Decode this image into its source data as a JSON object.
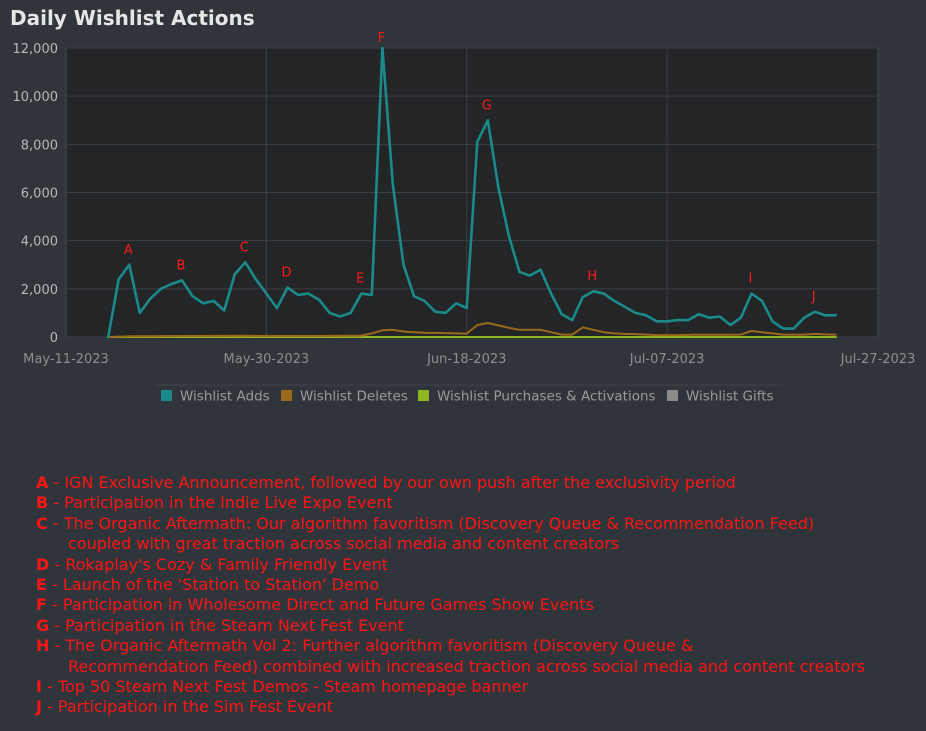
{
  "chart_data": {
    "type": "line",
    "title": "Daily Wishlist Actions",
    "xlabel": "",
    "ylabel": "",
    "x_range": [
      "2023-05-11",
      "2023-07-27"
    ],
    "ylim": [
      0,
      12000
    ],
    "y_ticks": [
      {
        "value": 0,
        "label": "0"
      },
      {
        "value": 2000,
        "label": "2,000"
      },
      {
        "value": 4000,
        "label": "4,000"
      },
      {
        "value": 6000,
        "label": "6,000"
      },
      {
        "value": 8000,
        "label": "8,000"
      },
      {
        "value": 10000,
        "label": "10,000"
      },
      {
        "value": 12000,
        "label": "12,000"
      }
    ],
    "x_ticks": [
      {
        "date": "2023-05-11",
        "label": "May-11-2023"
      },
      {
        "date": "2023-05-30",
        "label": "May-30-2023"
      },
      {
        "date": "2023-06-18",
        "label": "Jun-18-2023"
      },
      {
        "date": "2023-07-07",
        "label": "Jul-07-2023"
      },
      {
        "date": "2023-07-27",
        "label": "Jul-27-2023"
      }
    ],
    "grid": true,
    "legend_position": "bottom",
    "series": [
      {
        "name": "Wishlist Adds",
        "color": "#1b8a8a",
        "points": [
          [
            "2023-05-15",
            0
          ],
          [
            "2023-05-16",
            2400
          ],
          [
            "2023-05-17",
            3000
          ],
          [
            "2023-05-18",
            1000
          ],
          [
            "2023-05-19",
            1600
          ],
          [
            "2023-05-20",
            2000
          ],
          [
            "2023-05-21",
            2200
          ],
          [
            "2023-05-22",
            2350
          ],
          [
            "2023-05-23",
            1700
          ],
          [
            "2023-05-24",
            1400
          ],
          [
            "2023-05-25",
            1500
          ],
          [
            "2023-05-26",
            1100
          ],
          [
            "2023-05-27",
            2600
          ],
          [
            "2023-05-28",
            3100
          ],
          [
            "2023-05-29",
            2400
          ],
          [
            "2023-05-30",
            1800
          ],
          [
            "2023-05-31",
            1200
          ],
          [
            "2023-06-01",
            2050
          ],
          [
            "2023-06-02",
            1750
          ],
          [
            "2023-06-03",
            1800
          ],
          [
            "2023-06-04",
            1550
          ],
          [
            "2023-06-05",
            1000
          ],
          [
            "2023-06-06",
            850
          ],
          [
            "2023-06-07",
            1000
          ],
          [
            "2023-06-08",
            1800
          ],
          [
            "2023-06-09",
            1750
          ],
          [
            "2023-06-10",
            12000
          ],
          [
            "2023-06-11",
            6300
          ],
          [
            "2023-06-12",
            3000
          ],
          [
            "2023-06-13",
            1700
          ],
          [
            "2023-06-14",
            1500
          ],
          [
            "2023-06-15",
            1050
          ],
          [
            "2023-06-16",
            1000
          ],
          [
            "2023-06-17",
            1400
          ],
          [
            "2023-06-18",
            1200
          ],
          [
            "2023-06-19",
            8100
          ],
          [
            "2023-06-20",
            9000
          ],
          [
            "2023-06-21",
            6200
          ],
          [
            "2023-06-22",
            4200
          ],
          [
            "2023-06-23",
            2700
          ],
          [
            "2023-06-24",
            2550
          ],
          [
            "2023-06-25",
            2800
          ],
          [
            "2023-06-26",
            1800
          ],
          [
            "2023-06-27",
            950
          ],
          [
            "2023-06-28",
            700
          ],
          [
            "2023-06-29",
            1650
          ],
          [
            "2023-06-30",
            1900
          ],
          [
            "2023-07-01",
            1800
          ],
          [
            "2023-07-02",
            1500
          ],
          [
            "2023-07-03",
            1250
          ],
          [
            "2023-07-04",
            1000
          ],
          [
            "2023-07-05",
            900
          ],
          [
            "2023-07-06",
            650
          ],
          [
            "2023-07-07",
            650
          ],
          [
            "2023-07-08",
            700
          ],
          [
            "2023-07-09",
            700
          ],
          [
            "2023-07-10",
            950
          ],
          [
            "2023-07-11",
            800
          ],
          [
            "2023-07-12",
            850
          ],
          [
            "2023-07-13",
            500
          ],
          [
            "2023-07-14",
            800
          ],
          [
            "2023-07-15",
            1800
          ],
          [
            "2023-07-16",
            1500
          ],
          [
            "2023-07-17",
            650
          ],
          [
            "2023-07-18",
            350
          ],
          [
            "2023-07-19",
            350
          ],
          [
            "2023-07-20",
            800
          ],
          [
            "2023-07-21",
            1050
          ],
          [
            "2023-07-22",
            900
          ],
          [
            "2023-07-23",
            900
          ]
        ]
      },
      {
        "name": "Wishlist Deletes",
        "color": "#9a6a1a",
        "points": [
          [
            "2023-05-15",
            0
          ],
          [
            "2023-05-17",
            30
          ],
          [
            "2023-05-22",
            40
          ],
          [
            "2023-05-28",
            50
          ],
          [
            "2023-06-03",
            40
          ],
          [
            "2023-06-08",
            60
          ],
          [
            "2023-06-09",
            150
          ],
          [
            "2023-06-10",
            280
          ],
          [
            "2023-06-11",
            300
          ],
          [
            "2023-06-12",
            230
          ],
          [
            "2023-06-13",
            200
          ],
          [
            "2023-06-14",
            180
          ],
          [
            "2023-06-15",
            170
          ],
          [
            "2023-06-16",
            160
          ],
          [
            "2023-06-17",
            150
          ],
          [
            "2023-06-18",
            140
          ],
          [
            "2023-06-19",
            500
          ],
          [
            "2023-06-20",
            580
          ],
          [
            "2023-06-21",
            480
          ],
          [
            "2023-06-22",
            380
          ],
          [
            "2023-06-23",
            300
          ],
          [
            "2023-06-24",
            300
          ],
          [
            "2023-06-25",
            300
          ],
          [
            "2023-06-26",
            200
          ],
          [
            "2023-06-27",
            100
          ],
          [
            "2023-06-28",
            100
          ],
          [
            "2023-06-29",
            400
          ],
          [
            "2023-06-30",
            300
          ],
          [
            "2023-07-01",
            200
          ],
          [
            "2023-07-02",
            150
          ],
          [
            "2023-07-03",
            130
          ],
          [
            "2023-07-04",
            120
          ],
          [
            "2023-07-05",
            100
          ],
          [
            "2023-07-06",
            80
          ],
          [
            "2023-07-08",
            80
          ],
          [
            "2023-07-10",
            100
          ],
          [
            "2023-07-12",
            90
          ],
          [
            "2023-07-14",
            100
          ],
          [
            "2023-07-15",
            250
          ],
          [
            "2023-07-16",
            200
          ],
          [
            "2023-07-17",
            150
          ],
          [
            "2023-07-18",
            100
          ],
          [
            "2023-07-20",
            100
          ],
          [
            "2023-07-21",
            130
          ],
          [
            "2023-07-22",
            110
          ],
          [
            "2023-07-23",
            100
          ]
        ]
      },
      {
        "name": "Wishlist Purchases & Activations",
        "color": "#8fb520",
        "points": [
          [
            "2023-05-15",
            0
          ],
          [
            "2023-07-23",
            0
          ]
        ]
      },
      {
        "name": "Wishlist Gifts",
        "color": "#8a8a8a",
        "points": [
          [
            "2023-05-15",
            0
          ],
          [
            "2023-07-23",
            0
          ]
        ]
      }
    ],
    "annotations": [
      {
        "label": "A",
        "date": "2023-05-17",
        "value": 3000
      },
      {
        "label": "B",
        "date": "2023-05-22",
        "value": 2350
      },
      {
        "label": "C",
        "date": "2023-05-28",
        "value": 3100
      },
      {
        "label": "D",
        "date": "2023-06-01",
        "value": 2050
      },
      {
        "label": "E",
        "date": "2023-06-08",
        "value": 1800
      },
      {
        "label": "F",
        "date": "2023-06-10",
        "value": 12000
      },
      {
        "label": "G",
        "date": "2023-06-20",
        "value": 9000
      },
      {
        "label": "H",
        "date": "2023-06-30",
        "value": 1900
      },
      {
        "label": "I",
        "date": "2023-07-15",
        "value": 1800
      },
      {
        "label": "J",
        "date": "2023-07-21",
        "value": 1050
      }
    ]
  },
  "notes": [
    {
      "letter": "A",
      "text": " - IGN Exclusive Announcement, followed by our own push after the exclusivity period",
      "cont": ""
    },
    {
      "letter": "B",
      "text": " - Participation in the Indie Live Expo Event",
      "cont": ""
    },
    {
      "letter": "C",
      "text": " - The Organic Aftermath: Our algorithm favoritism (Discovery Queue & Recommendation Feed)",
      "cont": "coupled with great traction across social media and content creators"
    },
    {
      "letter": "D",
      "text": " - Rokaplay's Cozy & Family Friendly Event",
      "cont": ""
    },
    {
      "letter": "E",
      "text": " - Launch of the 'Station to Station' Demo",
      "cont": ""
    },
    {
      "letter": "F",
      "text": " - Participation in Wholesome Direct and Future Games Show Events",
      "cont": ""
    },
    {
      "letter": "G",
      "text": " - Participation in the Steam Next Fest Event",
      "cont": ""
    },
    {
      "letter": "H",
      "text": " - The Organic Aftermath Vol 2: Further algorithm favoritism (Discovery Queue &",
      "cont": "Recommendation Feed) combined with increased traction across social media and content creators"
    },
    {
      "letter": "I",
      "text": " - Top 50 Steam Next Fest Demos - Steam homepage banner",
      "cont": ""
    },
    {
      "letter": "J",
      "text": " - Participation in the Sim Fest Event",
      "cont": ""
    }
  ]
}
